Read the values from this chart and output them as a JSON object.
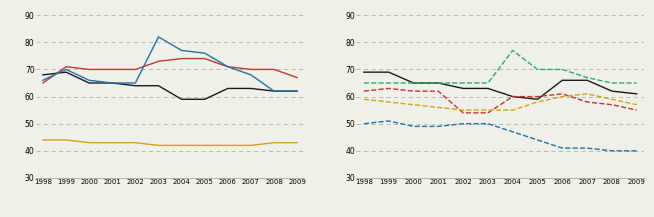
{
  "years": [
    1998,
    1999,
    2000,
    2001,
    2002,
    2003,
    2004,
    2005,
    2006,
    2007,
    2008,
    2009
  ],
  "left": {
    "CZ": [
      68,
      69,
      65,
      65,
      64,
      64,
      59,
      59,
      63,
      63,
      62,
      62
    ],
    "AT": [
      65,
      71,
      70,
      70,
      70,
      73,
      74,
      74,
      71,
      70,
      70,
      67
    ],
    "DE": [
      44,
      44,
      43,
      43,
      43,
      42,
      42,
      42,
      42,
      42,
      43,
      43
    ],
    "PT": [
      66,
      70,
      66,
      65,
      65,
      82,
      77,
      76,
      71,
      68,
      62,
      62
    ]
  },
  "left_colors": {
    "CZ": "#1a1a1a",
    "AT": "#c0392b",
    "DE": "#d4a017",
    "PT": "#2471a3"
  },
  "right": {
    "CZ": [
      69,
      69,
      65,
      65,
      63,
      63,
      60,
      59,
      66,
      66,
      62,
      61
    ],
    "HU": [
      62,
      63,
      62,
      62,
      54,
      54,
      60,
      60,
      61,
      58,
      57,
      55
    ],
    "PL": [
      59,
      58,
      57,
      56,
      55,
      55,
      55,
      58,
      60,
      61,
      59,
      57
    ],
    "SI": [
      65,
      65,
      65,
      65,
      65,
      65,
      77,
      70,
      70,
      67,
      65,
      65
    ],
    "SK": [
      50,
      51,
      49,
      49,
      50,
      50,
      47,
      44,
      41,
      41,
      40,
      40
    ]
  },
  "right_colors": {
    "CZ": "#1a1a1a",
    "HU": "#c0392b",
    "PL": "#d4a017",
    "SI": "#27ae60",
    "SK": "#2471a3"
  },
  "right_styles": {
    "CZ": "-",
    "HU": "--",
    "PL": "--",
    "SI": "--",
    "SK": "--"
  },
  "ylim": [
    30,
    90
  ],
  "yticks": [
    30,
    40,
    50,
    60,
    70,
    80,
    90
  ],
  "bg_color": "#f0f0eb",
  "grid_color": "#b0b0b0"
}
